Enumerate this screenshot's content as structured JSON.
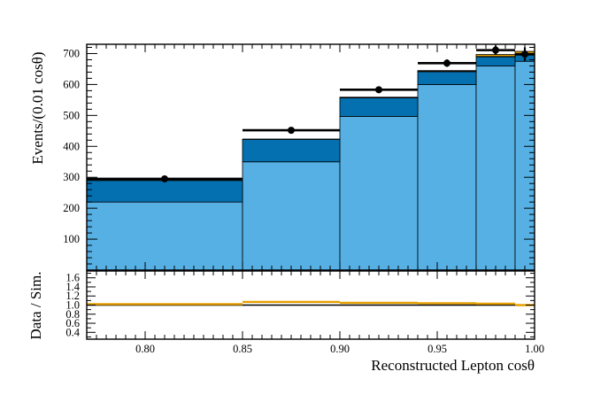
{
  "chart_data": {
    "type": "bar",
    "top_panel": {
      "ylabel": "Events/(0.01 cosθ)",
      "ylim": [
        0,
        730
      ],
      "yticks": [
        "100",
        "200",
        "300",
        "400",
        "500",
        "600",
        "700"
      ],
      "bin_edges": [
        0.77,
        0.85,
        0.9,
        0.94,
        0.97,
        0.99,
        1.0
      ],
      "stack": [
        {
          "color": "#56b0e4",
          "values": [
            220,
            350,
            497,
            600,
            660,
            675
          ]
        },
        {
          "color": "#0470b0",
          "values": [
            70,
            73,
            60,
            42,
            30,
            20
          ]
        },
        {
          "color": "#e69f00",
          "values": [
            0,
            0,
            2,
            3,
            7,
            12
          ]
        }
      ],
      "hist_outline": [
        290,
        423,
        557,
        642,
        690,
        698
      ],
      "data": [
        {
          "x": 0.81,
          "y": 295,
          "err": 9,
          "xerr": 0.04
        },
        {
          "x": 0.875,
          "y": 452,
          "err": 8,
          "xerr": 0.025
        },
        {
          "x": 0.92,
          "y": 583,
          "err": 8,
          "xerr": 0.02
        },
        {
          "x": 0.955,
          "y": 669,
          "err": 12,
          "xerr": 0.015
        },
        {
          "x": 0.98,
          "y": 711,
          "err": 15,
          "xerr": 0.01
        },
        {
          "x": 0.995,
          "y": 698,
          "err": 22,
          "xerr": 0.005
        }
      ]
    },
    "bottom_panel": {
      "ylabel": "Data / Sim.",
      "ylim": [
        0.25,
        1.75
      ],
      "yticks": [
        "0.4",
        "0.6",
        "0.8",
        "1.0",
        "1.2",
        "1.4",
        "1.6"
      ],
      "ratio": [
        1.02,
        1.07,
        1.05,
        1.04,
        1.03,
        1.0
      ],
      "line_color": "#e69f00"
    },
    "xlabel": "Reconstructed Lepton cosθ",
    "xlim": [
      0.77,
      1.0
    ],
    "xticks": [
      "0.80",
      "0.85",
      "0.90",
      "0.95",
      "1.00"
    ]
  }
}
